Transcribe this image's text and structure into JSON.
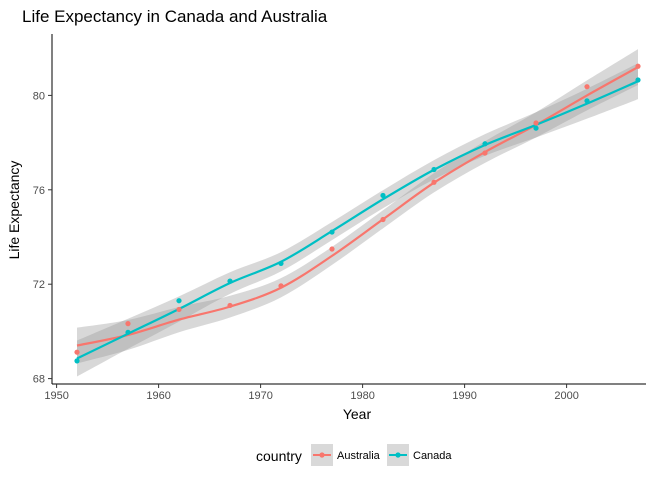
{
  "chart_data": {
    "type": "scatter",
    "title": "Life Expectancy in Canada and Australia",
    "xlabel": "Year",
    "ylabel": "Life Expectancy",
    "xlim": [
      1950,
      2008
    ],
    "ylim": [
      68,
      82.5
    ],
    "x_ticks": [
      1950,
      1960,
      1970,
      1980,
      1990,
      2000
    ],
    "y_ticks": [
      68,
      72,
      76,
      80
    ],
    "grid": false,
    "legend": {
      "title": "country",
      "position": "bottom",
      "entries": [
        "Australia",
        "Canada"
      ]
    },
    "x": [
      1952,
      1957,
      1962,
      1967,
      1972,
      1977,
      1982,
      1987,
      1992,
      1997,
      2002,
      2007
    ],
    "series": [
      {
        "name": "Australia",
        "color": "#F8766D",
        "values": [
          69.12,
          70.33,
          70.93,
          71.1,
          71.93,
          73.49,
          74.74,
          76.32,
          77.56,
          78.83,
          80.37,
          81.235
        ],
        "smooth": [
          69.4,
          69.85,
          70.5,
          71.05,
          71.85,
          73.2,
          74.75,
          76.3,
          77.6,
          78.75,
          80.0,
          81.2
        ]
      },
      {
        "name": "Canada",
        "color": "#00BFC4",
        "values": [
          68.75,
          69.96,
          71.3,
          72.13,
          72.88,
          74.21,
          75.76,
          76.86,
          77.95,
          78.61,
          79.77,
          80.653
        ],
        "smooth": [
          68.85,
          69.9,
          70.95,
          72.05,
          72.95,
          74.25,
          75.6,
          76.85,
          77.9,
          78.75,
          79.65,
          80.6
        ]
      }
    ]
  }
}
